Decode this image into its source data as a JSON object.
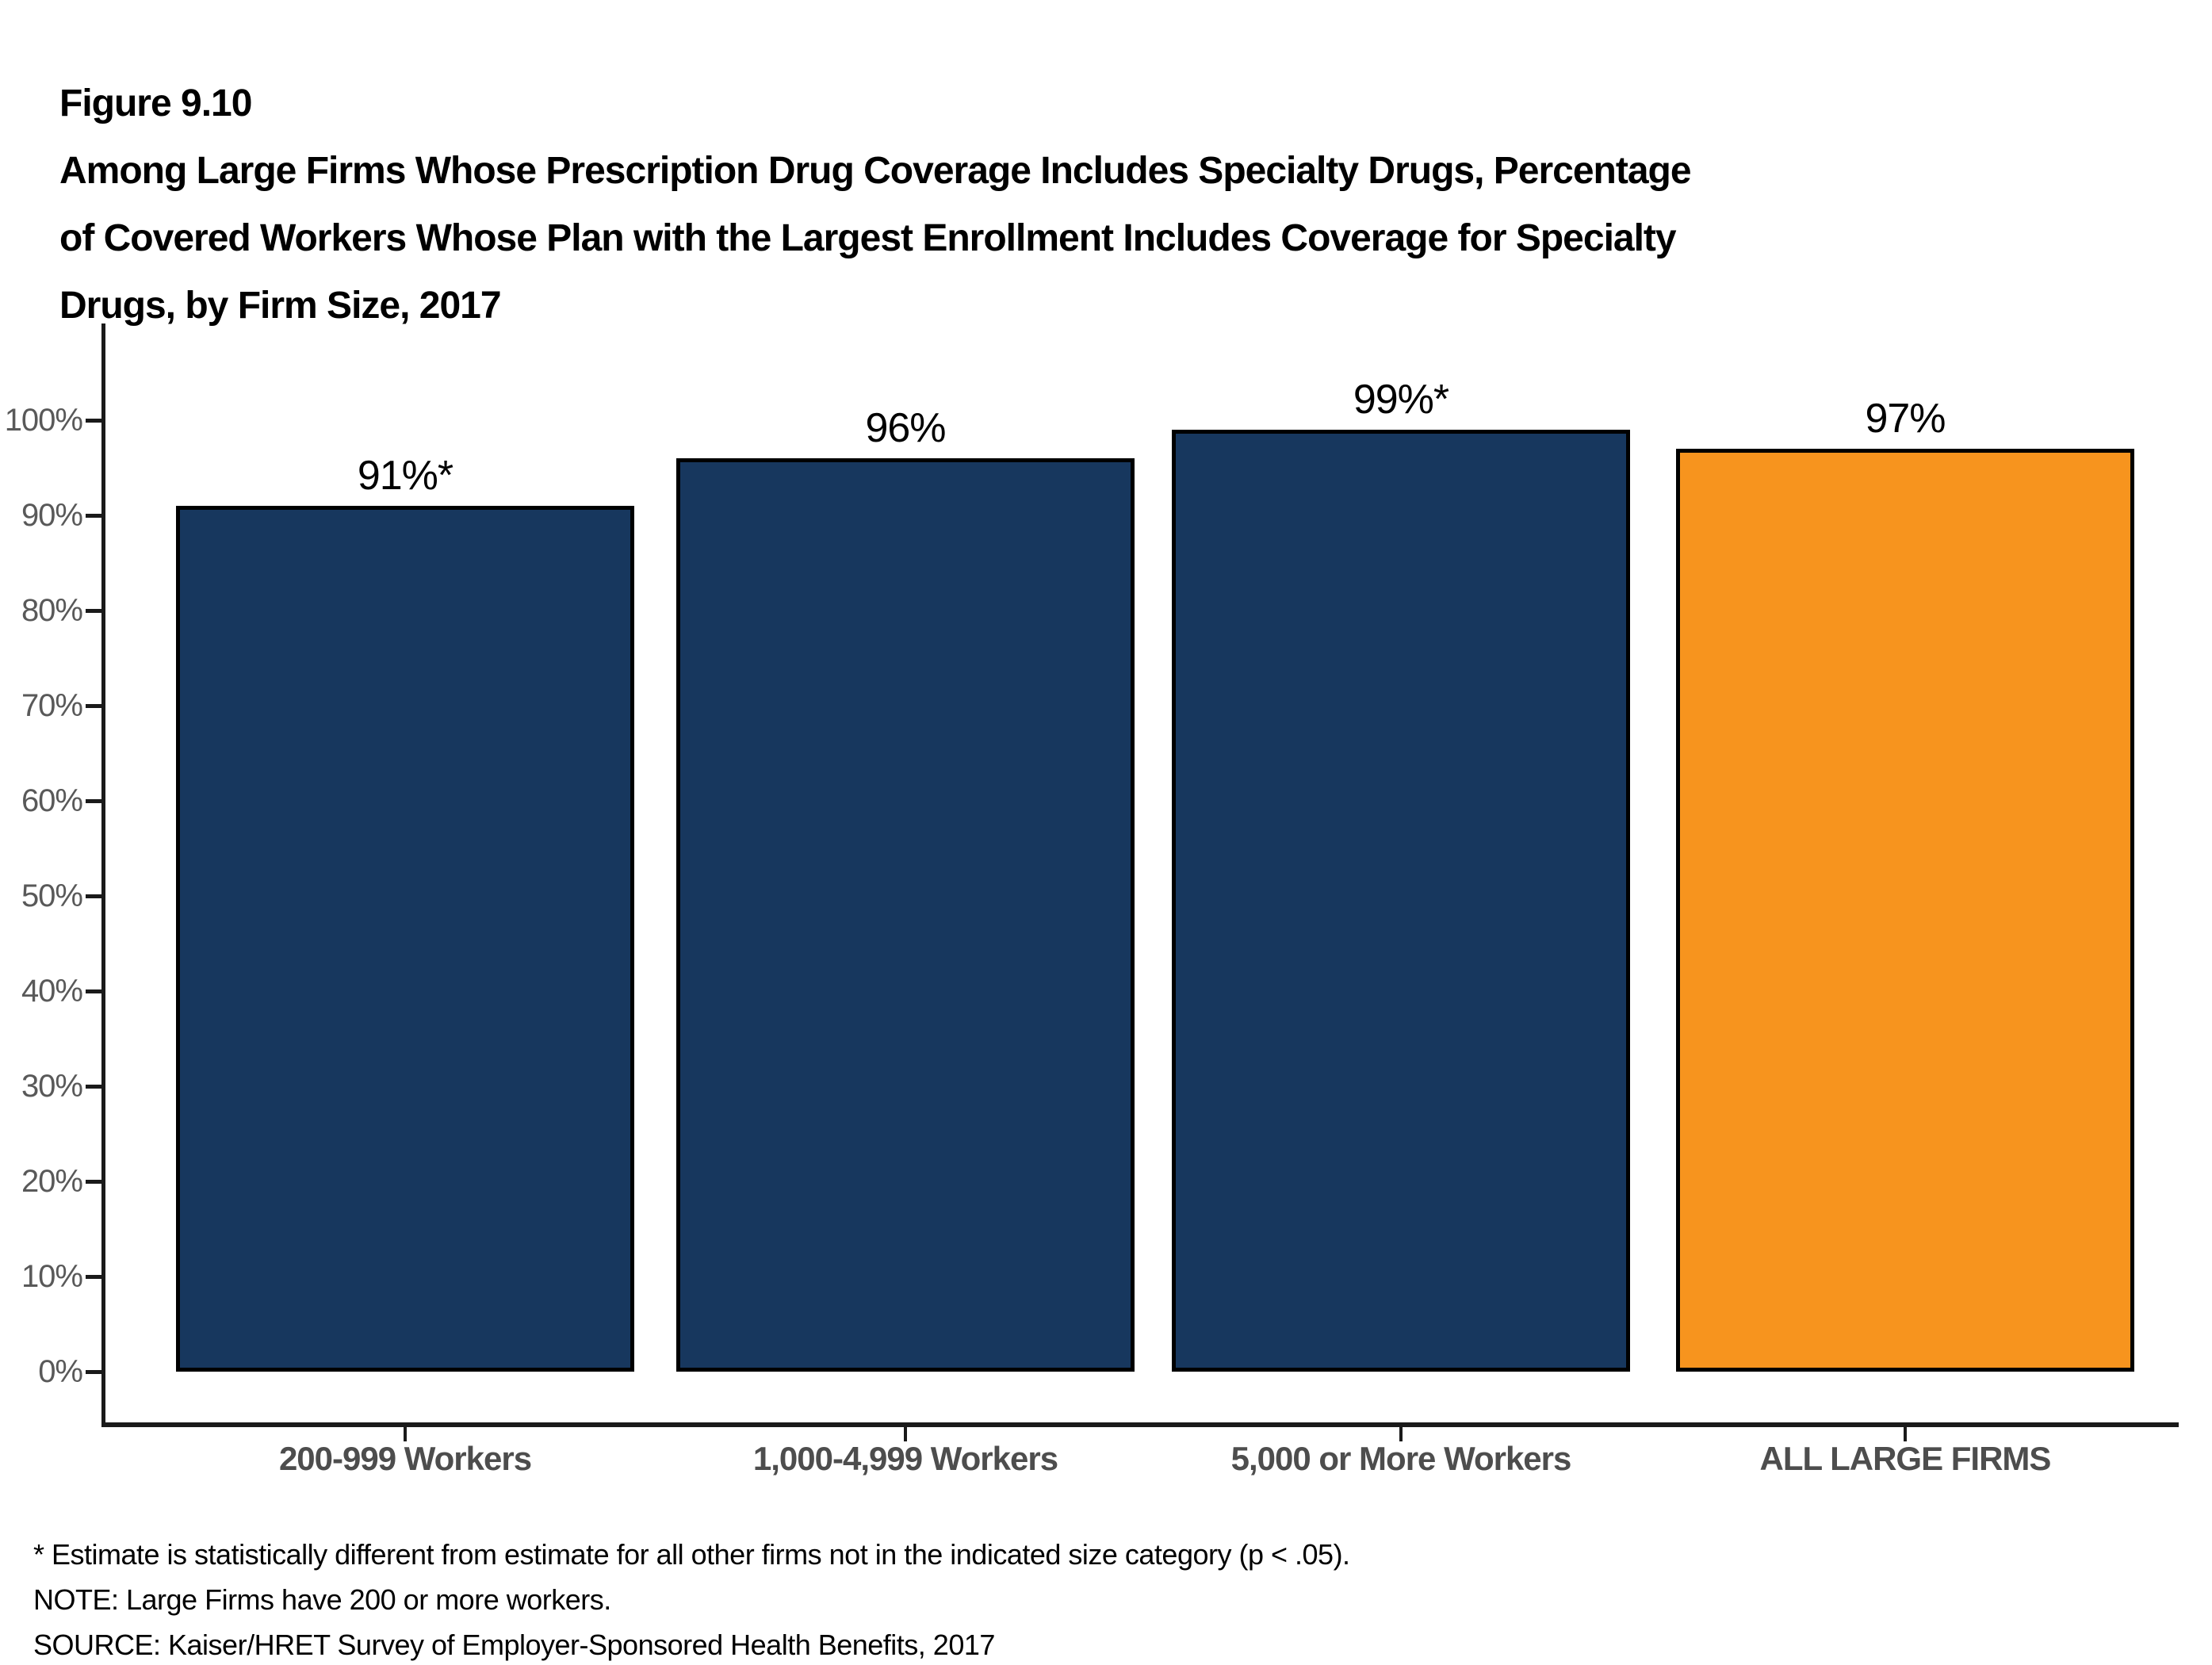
{
  "header": {
    "figure_label": "Figure 9.10",
    "title_lines": [
      "Among Large Firms Whose Prescription Drug Coverage Includes Specialty Drugs, Percentage",
      "of Covered Workers Whose Plan with the Largest Enrollment Includes Coverage for Specialty",
      "Drugs, by Firm Size, 2017"
    ]
  },
  "chart_data": {
    "type": "bar",
    "title": "Among Large Firms Whose Prescription Drug Coverage Includes Specialty Drugs, Percentage of Covered Workers Whose Plan with the Largest Enrollment Includes Coverage for Specialty Drugs, by Firm Size, 2017",
    "figure_label": "Figure 9.10",
    "categories": [
      "200-999 Workers",
      "1,000-4,999 Workers",
      "5,000 or More Workers",
      "ALL LARGE FIRMS"
    ],
    "values": [
      91,
      96,
      99,
      97
    ],
    "value_labels": [
      "91%*",
      "96%",
      "99%*",
      "97%"
    ],
    "bar_colors": [
      "#17375E",
      "#17375E",
      "#17375E",
      "#F7941E"
    ],
    "bar_border_color": "#000000",
    "xlabel": "",
    "ylabel": "",
    "ylim": [
      0,
      100
    ],
    "yticks": [
      0,
      10,
      20,
      30,
      40,
      50,
      60,
      70,
      80,
      90,
      100
    ],
    "ytick_labels": [
      "0%",
      "10%",
      "20%",
      "30%",
      "40%",
      "50%",
      "60%",
      "70%",
      "80%",
      "90%",
      "100%"
    ],
    "grid": false,
    "legend": false
  },
  "colors": {
    "axis": "#1a1a1a",
    "ytick_label": "#595959",
    "category_label": "#4d4d4d",
    "navy": "#17375E",
    "orange": "#F7941E"
  },
  "footnotes": {
    "asterisk": "* Estimate is statistically different from estimate for all other firms not in the indicated size category (p < .05).",
    "note": "NOTE: Large Firms have 200 or more workers.",
    "source": "SOURCE: Kaiser/HRET Survey of Employer-Sponsored Health Benefits, 2017"
  }
}
